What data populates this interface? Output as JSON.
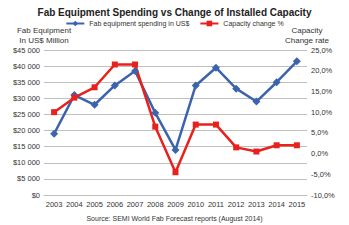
{
  "chart_data": {
    "type": "line",
    "title": "Fab Equipment Spending vs Change of Installed Capacity",
    "ylabel": "Fab Equipment\nIn US$ Million",
    "y2label": "Capacity\nChange rate",
    "source": "Source: SEMI World Fab Forecast reports (August 2014)",
    "categories": [
      "2003",
      "2004",
      "2005",
      "2006",
      "2007",
      "2008",
      "2009",
      "2010",
      "2011",
      "2012",
      "2013",
      "2014",
      "2015"
    ],
    "series": [
      {
        "name": "Fab equipment spending in US$",
        "color": "#3b64ad",
        "marker": "diamond",
        "values": [
          19000,
          31000,
          28000,
          34000,
          38500,
          25500,
          14000,
          34000,
          39500,
          33000,
          29000,
          35000,
          41500
        ]
      },
      {
        "name": "Capacity change %",
        "color": "#e8211c",
        "marker": "square",
        "axis": "y2",
        "values": [
          10,
          13.5,
          16,
          21.5,
          21.5,
          6.5,
          -4.5,
          7,
          7,
          1.5,
          0.5,
          2,
          2
        ]
      }
    ],
    "ylim": [
      0,
      45000
    ],
    "yticks": [
      {
        "value": 0,
        "label": "$0"
      },
      {
        "value": 5000,
        "label": "$5 000"
      },
      {
        "value": 10000,
        "label": "$10 000"
      },
      {
        "value": 15000,
        "label": "$15 000"
      },
      {
        "value": 20000,
        "label": "$20 000"
      },
      {
        "value": 25000,
        "label": "$25 000"
      },
      {
        "value": 30000,
        "label": "$30 000"
      },
      {
        "value": 35000,
        "label": "$35 000"
      },
      {
        "value": 40000,
        "label": "$40 000"
      },
      {
        "value": 45000,
        "label": "$45 000"
      }
    ],
    "y2lim": [
      -10,
      25
    ],
    "y2ticks": [
      {
        "value": -10,
        "label": "-10,0%"
      },
      {
        "value": -5,
        "label": "-5,0%"
      },
      {
        "value": 0,
        "label": "0,0%"
      },
      {
        "value": 5,
        "label": "5,0%"
      },
      {
        "value": 10,
        "label": "10,0%"
      },
      {
        "value": 15,
        "label": "15,0%"
      },
      {
        "value": 20,
        "label": "20,0%"
      },
      {
        "value": 25,
        "label": "25,0%"
      }
    ],
    "grid": true,
    "legend": "top"
  }
}
